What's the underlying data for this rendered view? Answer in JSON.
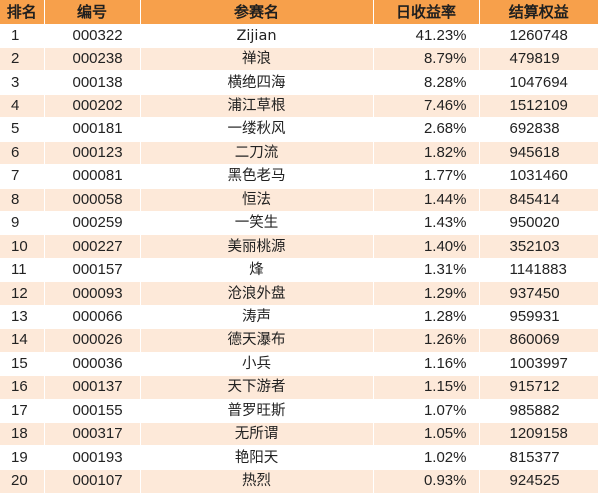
{
  "headers": {
    "rank": "排名",
    "code": "编号",
    "name": "参赛名",
    "rate": "日收益率",
    "equity": "结算权益"
  },
  "rows": [
    {
      "rank": "1",
      "code": "000322",
      "name": "Zijian",
      "rate": "41.23%",
      "equity": "1260748"
    },
    {
      "rank": "2",
      "code": "000238",
      "name": "禅浪",
      "rate": "8.79%",
      "equity": "479819"
    },
    {
      "rank": "3",
      "code": "000138",
      "name": "横绝四海",
      "rate": "8.28%",
      "equity": "1047694"
    },
    {
      "rank": "4",
      "code": "000202",
      "name": "浦江草根",
      "rate": "7.46%",
      "equity": "1512109"
    },
    {
      "rank": "5",
      "code": "000181",
      "name": "一缕秋风",
      "rate": "2.68%",
      "equity": "692838"
    },
    {
      "rank": "6",
      "code": "000123",
      "name": "二刀流",
      "rate": "1.82%",
      "equity": "945618"
    },
    {
      "rank": "7",
      "code": "000081",
      "name": "黑色老马",
      "rate": "1.77%",
      "equity": "1031460"
    },
    {
      "rank": "8",
      "code": "000058",
      "name": "恒法",
      "rate": "1.44%",
      "equity": "845414"
    },
    {
      "rank": "9",
      "code": "000259",
      "name": "一笑生",
      "rate": "1.43%",
      "equity": "950020"
    },
    {
      "rank": "10",
      "code": "000227",
      "name": "美丽桃源",
      "rate": "1.40%",
      "equity": "352103"
    },
    {
      "rank": "11",
      "code": "000157",
      "name": "烽",
      "rate": "1.31%",
      "equity": "1141883"
    },
    {
      "rank": "12",
      "code": "000093",
      "name": "沧浪外盘",
      "rate": "1.29%",
      "equity": "937450"
    },
    {
      "rank": "13",
      "code": "000066",
      "name": "涛声",
      "rate": "1.28%",
      "equity": "959931"
    },
    {
      "rank": "14",
      "code": "000026",
      "name": "德天瀑布",
      "rate": "1.26%",
      "equity": "860069"
    },
    {
      "rank": "15",
      "code": "000036",
      "name": "小兵",
      "rate": "1.16%",
      "equity": "1003997"
    },
    {
      "rank": "16",
      "code": "000137",
      "name": "天下游者",
      "rate": "1.15%",
      "equity": "915712"
    },
    {
      "rank": "17",
      "code": "000155",
      "name": "普罗旺斯",
      "rate": "1.07%",
      "equity": "985882"
    },
    {
      "rank": "18",
      "code": "000317",
      "name": "无所谓",
      "rate": "1.05%",
      "equity": "1209158"
    },
    {
      "rank": "19",
      "code": "000193",
      "name": "艳阳天",
      "rate": "1.02%",
      "equity": "815377"
    },
    {
      "rank": "20",
      "code": "000107",
      "name": "热烈",
      "rate": "0.93%",
      "equity": "924525"
    }
  ],
  "colors": {
    "header_bg": "#f7a04b",
    "row_alt_bg": "#fde9d9",
    "row_bg": "#ffffff"
  }
}
